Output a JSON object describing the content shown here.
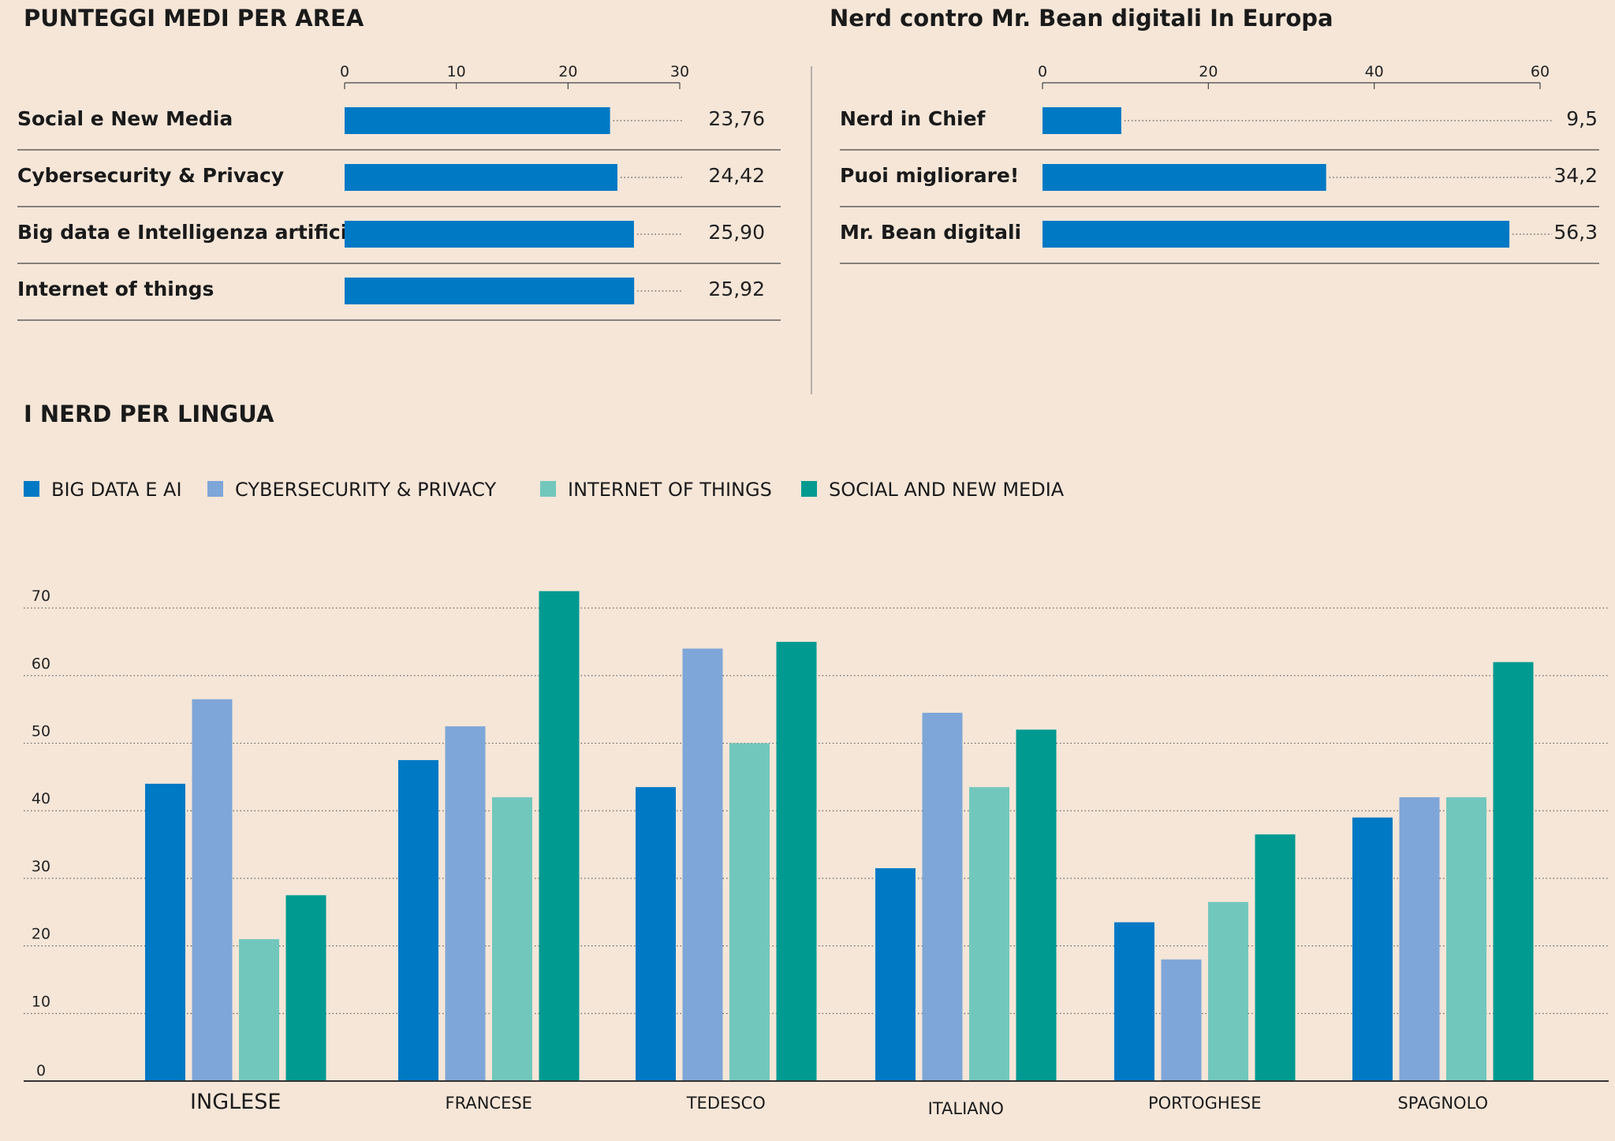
{
  "colors": {
    "background": "#f5e6d8",
    "bar_blue": "#0079c5",
    "big_data": "#0079c5",
    "cyber": "#7fa6d8",
    "iot": "#72c7bc",
    "social": "#009a91",
    "rule": "#444444",
    "dotted": "#555555"
  },
  "chart_data": [
    {
      "type": "bar",
      "orientation": "horizontal",
      "title": "PUNTEGGI MEDI PER AREA",
      "categories": [
        "Social e New Media",
        "Cybersecurity & Privacy",
        "Big data e Intelligenza artificiale",
        "Internet of things"
      ],
      "values": [
        23.76,
        24.42,
        25.9,
        25.92
      ],
      "value_labels": [
        "23,76",
        "24,42",
        "25,90",
        "25,92"
      ],
      "xlim": [
        0,
        30
      ],
      "xticks": [
        "0",
        "10",
        "20",
        "30"
      ]
    },
    {
      "type": "bar",
      "orientation": "horizontal",
      "title": "Nerd  contro Mr. Bean digitali In Europa",
      "categories": [
        "Nerd in Chief",
        "Puoi migliorare!",
        "Mr. Bean digitali"
      ],
      "values": [
        9.5,
        34.2,
        56.3
      ],
      "value_labels": [
        "9,5",
        "34,2",
        "56,3"
      ],
      "xlim": [
        0,
        60
      ],
      "xticks": [
        "0",
        "20",
        "40",
        "60"
      ]
    },
    {
      "type": "bar",
      "orientation": "vertical",
      "title": "I NERD PER LINGUA",
      "categories": [
        "INGLESE",
        "FRANCESE",
        "TEDESCO",
        "ITALIANO",
        "PORTOGHESE",
        "SPAGNOLO"
      ],
      "series": [
        {
          "name": "BIG DATA E AI",
          "color_key": "big_data",
          "values": [
            44,
            47.5,
            43.5,
            31.5,
            23.5,
            39
          ]
        },
        {
          "name": "CYBERSECURITY & PRIVACY",
          "color_key": "cyber",
          "values": [
            56.5,
            52.5,
            64,
            54.5,
            18,
            42
          ]
        },
        {
          "name": "INTERNET OF THINGS",
          "color_key": "iot",
          "values": [
            21,
            42,
            50,
            43.5,
            26.5,
            42
          ]
        },
        {
          "name": "SOCIAL AND NEW MEDIA",
          "color_key": "social",
          "values": [
            27.5,
            72.5,
            65,
            52,
            36.5,
            62
          ]
        }
      ],
      "ylim": [
        0,
        70
      ],
      "yticks": [
        "0",
        "10",
        "20",
        "30",
        "40",
        "50",
        "60",
        "70"
      ]
    }
  ]
}
